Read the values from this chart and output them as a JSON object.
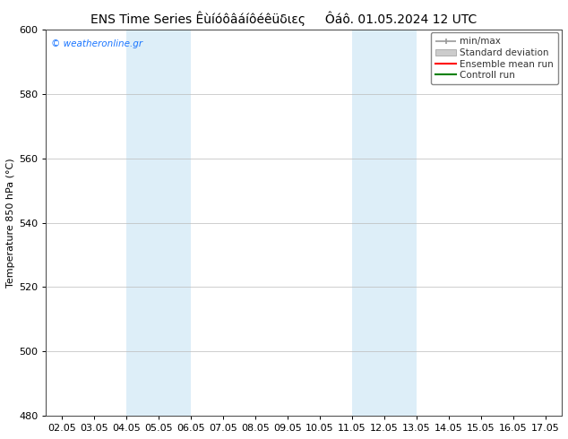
{
  "title": "ENS Time Series Êùíóôâáíôéêüδιες     Ôáô. 01.05.2024 12 UTC",
  "ylabel": "Temperature 850 hPa (°C)",
  "watermark": "© weatheronline.gr",
  "ylim": [
    480,
    600
  ],
  "yticks": [
    480,
    500,
    520,
    540,
    560,
    580,
    600
  ],
  "xtick_labels": [
    "02.05",
    "03.05",
    "04.05",
    "05.05",
    "06.05",
    "07.05",
    "08.05",
    "09.05",
    "10.05",
    "11.05",
    "12.05",
    "13.05",
    "14.05",
    "15.05",
    "16.05",
    "17.05"
  ],
  "shaded_regions": [
    {
      "xstart": 2,
      "xend": 4,
      "color": "#ddeef8"
    },
    {
      "xstart": 9,
      "xend": 11,
      "color": "#ddeef8"
    }
  ],
  "background_color": "#ffffff",
  "plot_bg_color": "#ffffff",
  "grid_color": "#bbbbbb",
  "watermark_color": "#1a75ff",
  "title_fontsize": 10,
  "axis_fontsize": 8,
  "tick_fontsize": 8,
  "legend_fontsize": 7.5,
  "legend_label_color": "#333333",
  "minmax_color": "#999999",
  "std_color": "#cccccc",
  "ensemble_color": "#ff0000",
  "control_color": "#008000"
}
